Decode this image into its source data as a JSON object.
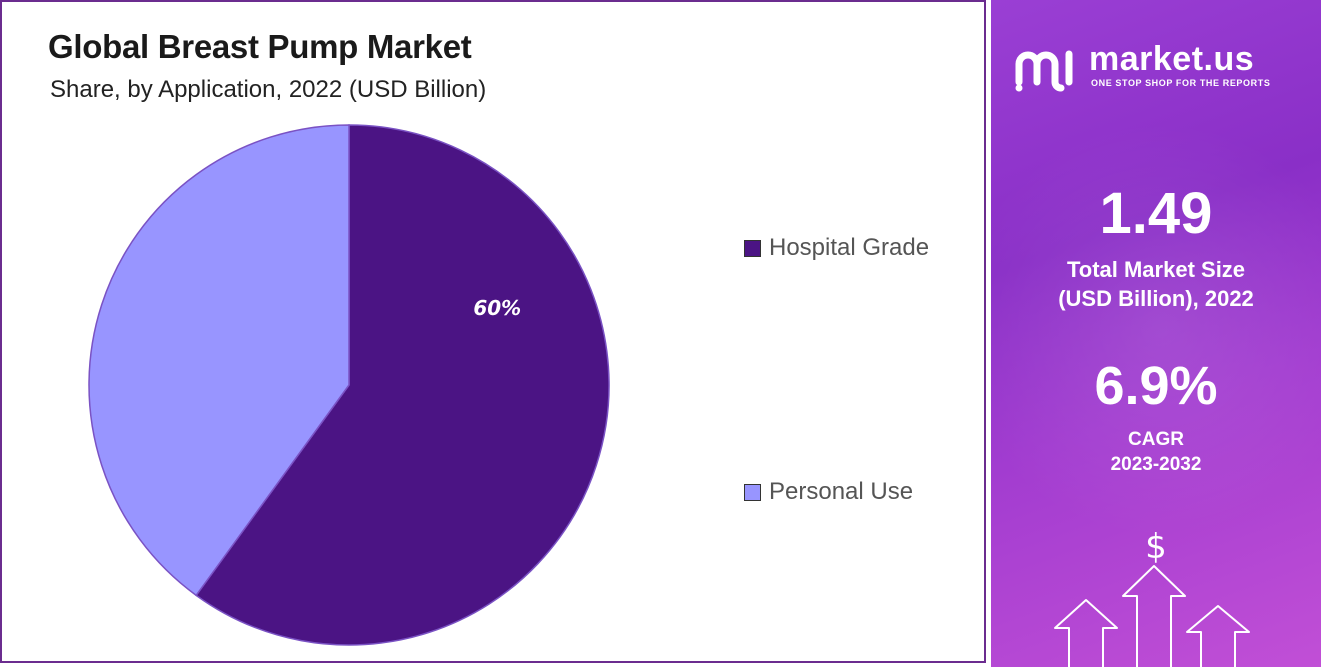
{
  "chart_data": {
    "type": "pie",
    "title": "Global Breast Pump Market",
    "subtitle": "Share, by Application, 2022 (USD Billion)",
    "slices": [
      {
        "name": "Hospital Grade",
        "value": 60,
        "label": "60%",
        "color": "#4b1484"
      },
      {
        "name": "Personal Use",
        "value": 40,
        "label": "",
        "color": "#9895ff"
      }
    ],
    "legend": "right"
  },
  "brand": {
    "name": "market.us",
    "tagline": "ONE STOP SHOP FOR THE REPORTS",
    "logo_icon": "market-us-logo-icon"
  },
  "stats": {
    "market_size_value": "1.49",
    "market_size_label_line1": "Total Market Size",
    "market_size_label_line2": "(USD Billion), 2022",
    "cagr_value": "6.9%",
    "cagr_label_line1": "CAGR",
    "cagr_label_line2": "2023-2032"
  },
  "decoration": {
    "currency_symbol": "$",
    "icon": "growth-arrows-icon"
  },
  "colors": {
    "panel_border": "#6b2c8f",
    "side_panel": "#9a3fd4"
  }
}
